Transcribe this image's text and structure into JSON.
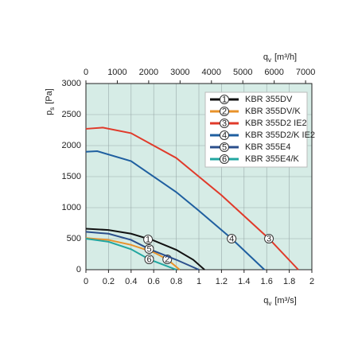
{
  "chart_data": {
    "type": "line",
    "x_label": {
      "symbol": "q",
      "sub": "v",
      "unit": "[m³/s]"
    },
    "x2_label": {
      "symbol": "q",
      "sub": "v",
      "unit": "[m³/h]"
    },
    "y_label": {
      "symbol": "p",
      "sub": "s",
      "unit": "[Pa]"
    },
    "xlim": [
      0,
      2
    ],
    "xticks": [
      0,
      0.2,
      0.4,
      0.6,
      0.8,
      1,
      1.2,
      1.4,
      1.6,
      1.8,
      2
    ],
    "x2lim": [
      0,
      7200
    ],
    "x2ticks": [
      0,
      1000,
      2000,
      3000,
      4000,
      5000,
      6000,
      7000
    ],
    "ylim": [
      0,
      3000
    ],
    "yticks": [
      0,
      500,
      1000,
      1500,
      2000,
      2500,
      3000
    ],
    "grid": true,
    "background": "#d6ece6",
    "legend": "upper right",
    "series": [
      {
        "name": "KBR 355DV",
        "label": "1",
        "color": "#111111",
        "x": [
          0,
          0.2,
          0.4,
          0.6,
          0.8,
          0.95,
          1.05
        ],
        "values": [
          660,
          640,
          580,
          470,
          320,
          160,
          0
        ],
        "marker": {
          "x": 0.55,
          "y": 487
        }
      },
      {
        "name": "KBR 355DV/K",
        "label": "2",
        "color": "#e8922a",
        "x": [
          0,
          0.2,
          0.4,
          0.6,
          0.72,
          0.83
        ],
        "values": [
          510,
          480,
          400,
          280,
          167,
          0
        ],
        "marker": {
          "x": 0.72,
          "y": 167
        }
      },
      {
        "name": "KBR 355D2 IE2",
        "label": "3",
        "color": "#e03a2a",
        "x": [
          0,
          0.15,
          0.4,
          0.8,
          1.2,
          1.62,
          1.88
        ],
        "values": [
          2270,
          2290,
          2200,
          1800,
          1200,
          500,
          0
        ],
        "marker": {
          "x": 1.62,
          "y": 500
        }
      },
      {
        "name": "KBR 355D2/K IE2",
        "label": "4",
        "color": "#1f5fa0",
        "x": [
          0,
          0.1,
          0.4,
          0.8,
          1.0,
          1.29,
          1.58
        ],
        "values": [
          1900,
          1910,
          1750,
          1250,
          950,
          500,
          0
        ],
        "marker": {
          "x": 1.29,
          "y": 500
        }
      },
      {
        "name": "KBR 355E4",
        "label": "5",
        "color": "#2b4f8c",
        "x": [
          0,
          0.2,
          0.4,
          0.56,
          0.8,
          1.0
        ],
        "values": [
          610,
          580,
          480,
          333,
          160,
          0
        ],
        "marker": {
          "x": 0.56,
          "y": 333
        }
      },
      {
        "name": "KBR 355E4/K",
        "label": "6",
        "color": "#22a6a0",
        "x": [
          0,
          0.2,
          0.4,
          0.56,
          0.7,
          0.8
        ],
        "values": [
          500,
          450,
          330,
          167,
          70,
          0
        ],
        "marker": {
          "x": 0.56,
          "y": 167
        }
      }
    ]
  }
}
